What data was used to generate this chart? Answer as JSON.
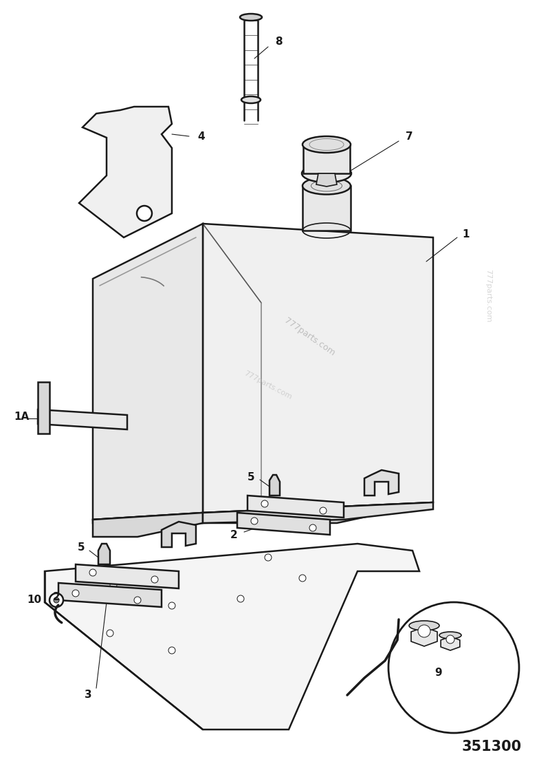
{
  "background_color": "#ffffff",
  "line_color": "#1a1a1a",
  "part_number": "351300",
  "watermark": "777parts.com"
}
